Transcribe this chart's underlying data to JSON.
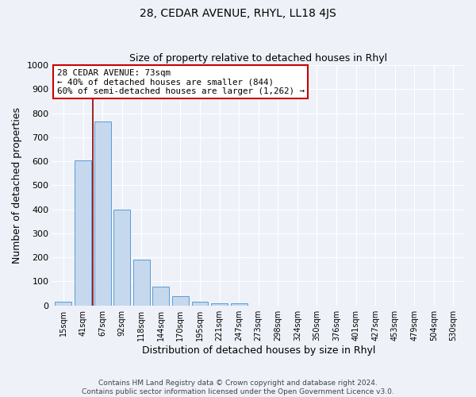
{
  "title": "28, CEDAR AVENUE, RHYL, LL18 4JS",
  "subtitle": "Size of property relative to detached houses in Rhyl",
  "xlabel": "Distribution of detached houses by size in Rhyl",
  "ylabel": "Number of detached properties",
  "bar_labels": [
    "15sqm",
    "41sqm",
    "67sqm",
    "92sqm",
    "118sqm",
    "144sqm",
    "170sqm",
    "195sqm",
    "221sqm",
    "247sqm",
    "273sqm",
    "298sqm",
    "324sqm",
    "350sqm",
    "376sqm",
    "401sqm",
    "427sqm",
    "453sqm",
    "479sqm",
    "504sqm",
    "530sqm"
  ],
  "bar_values": [
    15,
    605,
    765,
    400,
    190,
    77,
    40,
    15,
    10,
    10,
    0,
    0,
    0,
    0,
    0,
    0,
    0,
    0,
    0,
    0,
    0
  ],
  "bar_color": "#c5d8ed",
  "bar_edge_color": "#5b9bd5",
  "ylim": [
    0,
    1000
  ],
  "yticks": [
    0,
    100,
    200,
    300,
    400,
    500,
    600,
    700,
    800,
    900,
    1000
  ],
  "vline_color": "#8b0000",
  "annotation_title": "28 CEDAR AVENUE: 73sqm",
  "annotation_line1": "← 40% of detached houses are smaller (844)",
  "annotation_line2": "60% of semi-detached houses are larger (1,262) →",
  "annotation_box_color": "#ffffff",
  "annotation_box_edge": "#cc0000",
  "background_color": "#eef2f8",
  "plot_background": "#eef2f8",
  "grid_color": "#ffffff",
  "footnote1": "Contains HM Land Registry data © Crown copyright and database right 2024.",
  "footnote2": "Contains public sector information licensed under the Open Government Licence v3.0."
}
